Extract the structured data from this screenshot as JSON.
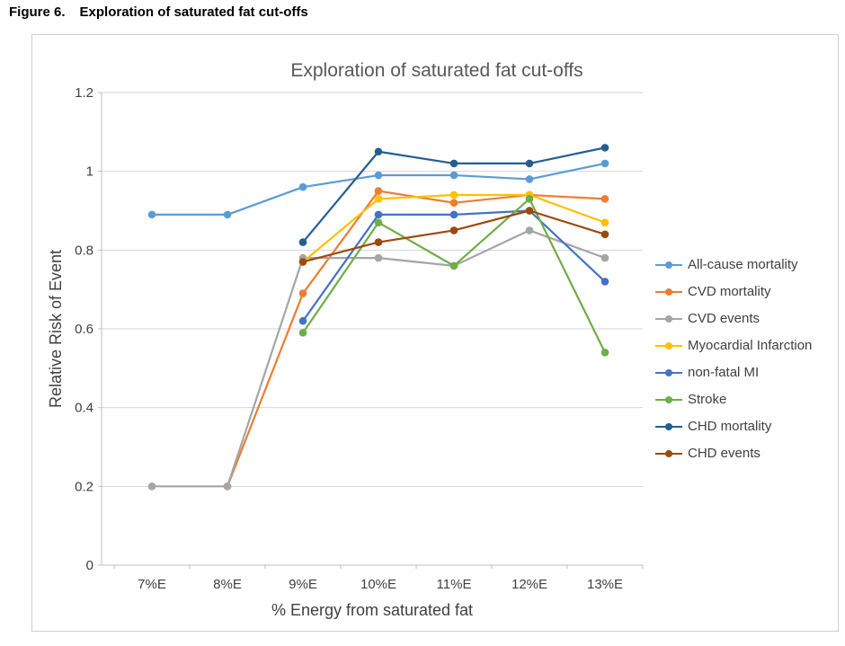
{
  "caption": {
    "label": "Figure 6.",
    "title": "Exploration of saturated fat cut-offs"
  },
  "chart_data": {
    "type": "line",
    "title": "Exploration of saturated fat cut-offs",
    "xlabel": "% Energy from saturated fat",
    "ylabel": "Relative Risk of Event",
    "categories": [
      "7%E",
      "8%E",
      "9%E",
      "10%E",
      "11%E",
      "12%E",
      "13%E"
    ],
    "y_tick_labels": [
      "0",
      "0.2",
      "0.4",
      "0.6",
      "0.8",
      "1",
      "1.2"
    ],
    "y_tick_values": [
      0,
      0.2,
      0.4,
      0.6,
      0.8,
      1.0,
      1.2
    ],
    "ylim": [
      0,
      1.2
    ],
    "grid": "horizontal",
    "legend_position": "right",
    "marker": "circle",
    "series": [
      {
        "name": "All-cause mortality",
        "color": "#5B9BD5",
        "values": [
          0.89,
          0.89,
          0.96,
          0.99,
          0.99,
          0.98,
          1.02
        ]
      },
      {
        "name": "CVD mortality",
        "color": "#ED7D31",
        "values": [
          null,
          0.2,
          0.69,
          0.95,
          0.92,
          0.94,
          0.93
        ]
      },
      {
        "name": "CVD events",
        "color": "#A5A5A5",
        "values": [
          0.2,
          0.2,
          0.78,
          0.78,
          0.76,
          0.85,
          0.78
        ]
      },
      {
        "name": "Myocardial Infarction",
        "color": "#FFC000",
        "values": [
          null,
          null,
          0.77,
          0.93,
          0.94,
          0.94,
          0.87
        ]
      },
      {
        "name": "non-fatal MI",
        "color": "#4472C4",
        "values": [
          null,
          null,
          0.62,
          0.89,
          0.89,
          0.9,
          0.72
        ]
      },
      {
        "name": "Stroke",
        "color": "#70AD47",
        "values": [
          null,
          null,
          0.59,
          0.87,
          0.76,
          0.93,
          0.54
        ]
      },
      {
        "name": "CHD mortality",
        "color": "#255E91",
        "values": [
          null,
          null,
          0.82,
          1.05,
          1.02,
          1.02,
          1.06
        ]
      },
      {
        "name": "CHD events",
        "color": "#9E480E",
        "values": [
          null,
          null,
          0.77,
          0.82,
          0.85,
          0.9,
          0.84
        ]
      }
    ],
    "style": {
      "grid_color": "#d6d6d6",
      "axis_color": "#bfbfbf",
      "title_color": "#595959",
      "tick_color": "#404040",
      "border_color": "#cfcfcf"
    }
  }
}
